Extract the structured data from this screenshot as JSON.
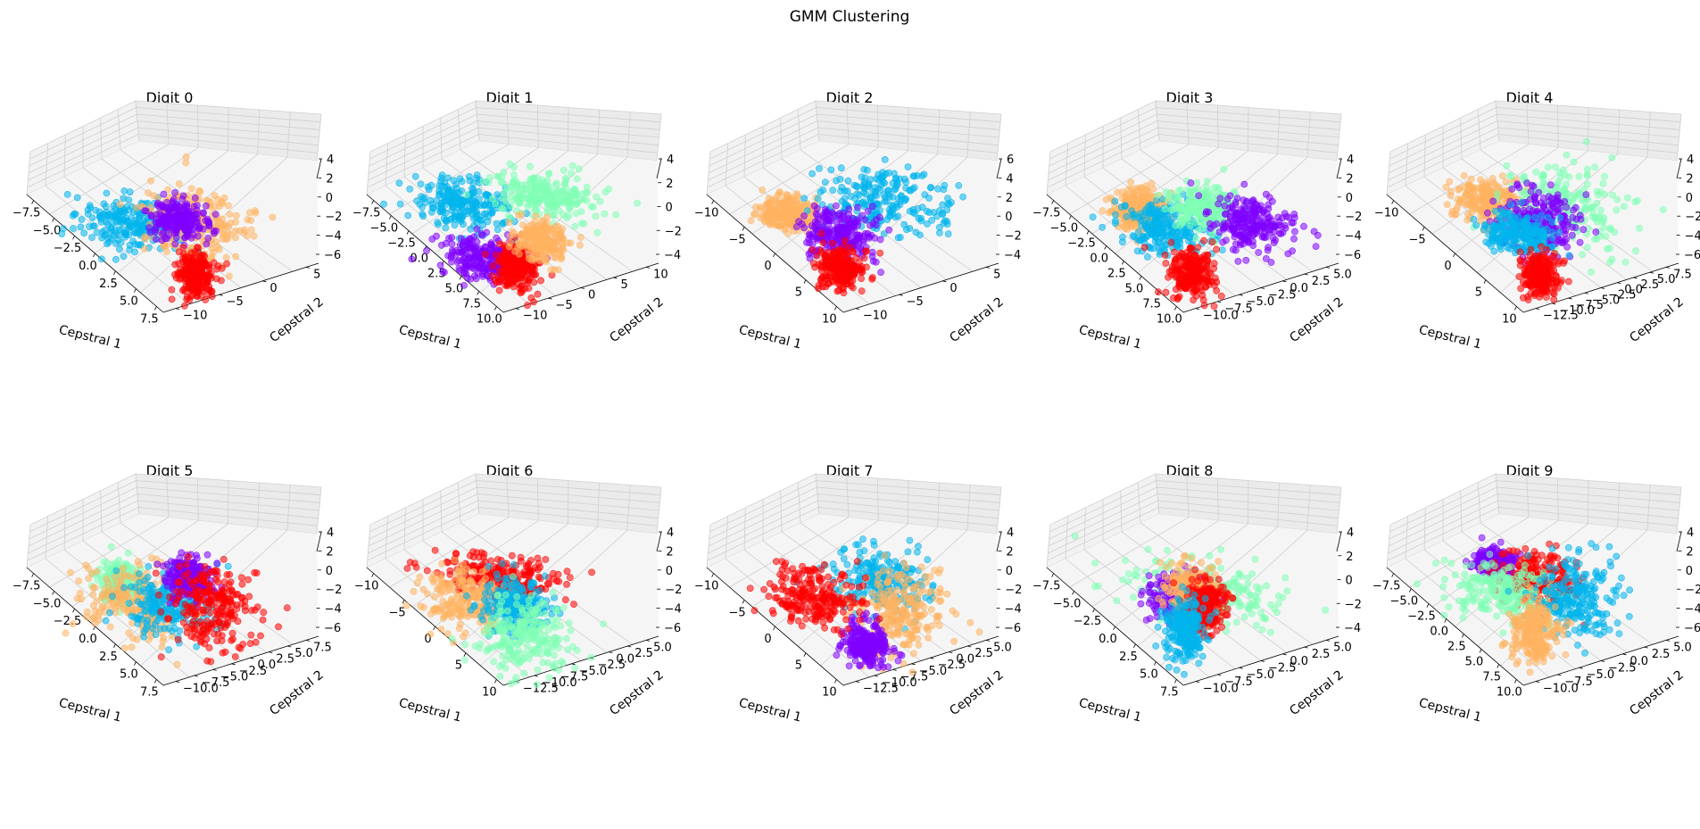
{
  "figure": {
    "title": "GMM Clustering"
  },
  "colors": {
    "purple": "#8000ff",
    "blue": "#00b4ec",
    "green": "#80ffb4",
    "orange": "#ffb360",
    "red": "#ff0000"
  },
  "chart_data": [
    {
      "type": "scatter",
      "title": "Digit 0",
      "xlabel": "Cepstral 1",
      "ylabel": "Cepstral 2",
      "xticks": [
        "−7.5",
        "−5.0",
        "−2.5",
        "0.0",
        "2.5",
        "5.0",
        "7.5"
      ],
      "yticks": [
        "−10",
        "−5",
        "0",
        "5"
      ],
      "zticks": [
        "−6",
        "−4",
        "−2",
        "0",
        "2",
        "4"
      ],
      "clusters": [
        {
          "color": "blue",
          "center": [
            -3,
            -2,
            -0.5
          ],
          "spread": [
            2.2,
            2,
            1.2
          ]
        },
        {
          "color": "orange",
          "center": [
            3,
            -1,
            0.5
          ],
          "spread": [
            2.2,
            1.8,
            1.8
          ]
        },
        {
          "color": "purple",
          "center": [
            1,
            0,
            0
          ],
          "spread": [
            1.2,
            1,
            1
          ]
        },
        {
          "color": "red",
          "center": [
            4,
            -3,
            -4
          ],
          "spread": [
            0.8,
            1,
            1.2
          ]
        }
      ]
    },
    {
      "type": "scatter",
      "title": "Digit 1",
      "xlabel": "Cepstral 1",
      "ylabel": "Cepstral 2",
      "xticks": [
        "−7.5",
        "−5.0",
        "−2.5",
        "0.0",
        "2.5",
        "5.0",
        "7.5",
        "10.0"
      ],
      "yticks": [
        "−10",
        "−5",
        "0",
        "5",
        "10"
      ],
      "zticks": [
        "−4",
        "−2",
        "0",
        "2",
        "4"
      ],
      "clusters": [
        {
          "color": "blue",
          "center": [
            -4,
            -1,
            1
          ],
          "spread": [
            2.2,
            2,
            1
          ]
        },
        {
          "color": "green",
          "center": [
            2,
            3,
            2
          ],
          "spread": [
            2.5,
            2,
            1.2
          ]
        },
        {
          "color": "purple",
          "center": [
            -1,
            -4,
            -3
          ],
          "spread": [
            1.8,
            1.5,
            1
          ]
        },
        {
          "color": "red",
          "center": [
            3,
            -5,
            -3
          ],
          "spread": [
            1,
            1,
            1.2
          ]
        },
        {
          "color": "orange",
          "center": [
            4,
            -2,
            -1
          ],
          "spread": [
            1.2,
            1,
            1
          ]
        }
      ]
    },
    {
      "type": "scatter",
      "title": "Digit 2",
      "xlabel": "Cepstral 1",
      "ylabel": "Cepstral 2",
      "xticks": [
        "−10",
        "−5",
        "0",
        "5",
        "10"
      ],
      "yticks": [
        "−10",
        "−5",
        "0",
        "5"
      ],
      "zticks": [
        "−4",
        "−2",
        "0",
        "2",
        "4",
        "6"
      ],
      "clusters": [
        {
          "color": "orange",
          "center": [
            -5,
            -2,
            0
          ],
          "spread": [
            1.5,
            1,
            0.8
          ]
        },
        {
          "color": "blue",
          "center": [
            3,
            1,
            2
          ],
          "spread": [
            3,
            2.5,
            1.5
          ]
        },
        {
          "color": "purple",
          "center": [
            0,
            -2,
            -1
          ],
          "spread": [
            1.8,
            1.5,
            1.2
          ]
        },
        {
          "color": "red",
          "center": [
            2,
            -6,
            -3
          ],
          "spread": [
            1,
            1,
            1
          ]
        }
      ]
    },
    {
      "type": "scatter",
      "title": "Digit 3",
      "xlabel": "Cepstral 1",
      "ylabel": "Cepstral 2",
      "xticks": [
        "−7.5",
        "−5.0",
        "−2.5",
        "0.0",
        "2.5",
        "5.0",
        "7.5",
        "10.0"
      ],
      "yticks": [
        "−10.0",
        "−7.5",
        "−5.0",
        "−2.5",
        "0.0",
        "2.5",
        "5.0"
      ],
      "zticks": [
        "−6",
        "−4",
        "−2",
        "0",
        "2",
        "4"
      ],
      "clusters": [
        {
          "color": "orange",
          "center": [
            -5,
            0,
            0
          ],
          "spread": [
            1,
            1,
            1
          ]
        },
        {
          "color": "blue",
          "center": [
            -2,
            -1,
            -1
          ],
          "spread": [
            2,
            1.5,
            1.2
          ]
        },
        {
          "color": "green",
          "center": [
            1,
            1,
            1
          ],
          "spread": [
            1.5,
            1.2,
            1
          ]
        },
        {
          "color": "purple",
          "center": [
            5,
            2,
            0
          ],
          "spread": [
            1.8,
            1.5,
            1.2
          ]
        },
        {
          "color": "red",
          "center": [
            2,
            -4,
            -4
          ],
          "spread": [
            1,
            1,
            1.2
          ]
        }
      ]
    },
    {
      "type": "scatter",
      "title": "Digit 4",
      "xlabel": "Cepstral 1",
      "ylabel": "Cepstral 2",
      "xticks": [
        "−10",
        "−5",
        "0",
        "5",
        "10"
      ],
      "yticks": [
        "−12.5",
        "−10.0",
        "−7.5",
        "−5.0",
        "−2.5",
        "0.0",
        "2.5",
        "5.0",
        "7.5"
      ],
      "zticks": [
        "−6",
        "−4",
        "−2",
        "0",
        "2",
        "4"
      ],
      "clusters": [
        {
          "color": "orange",
          "center": [
            -4,
            0,
            1
          ],
          "spread": [
            1.5,
            1.2,
            1
          ]
        },
        {
          "color": "green",
          "center": [
            2,
            2,
            1
          ],
          "spread": [
            3,
            2.5,
            2
          ]
        },
        {
          "color": "purple",
          "center": [
            1,
            0,
            0
          ],
          "spread": [
            1.8,
            1.5,
            1.5
          ]
        },
        {
          "color": "blue",
          "center": [
            0,
            -2,
            -1
          ],
          "spread": [
            1.5,
            1.2,
            1
          ]
        },
        {
          "color": "red",
          "center": [
            3,
            -4,
            -4
          ],
          "spread": [
            0.8,
            0.8,
            1
          ]
        }
      ]
    },
    {
      "type": "scatter",
      "title": "Digit 5",
      "xlabel": "Cepstral 1",
      "ylabel": "Cepstral 2",
      "xticks": [
        "−7.5",
        "−5.0",
        "−2.5",
        "0.0",
        "2.5",
        "5.0",
        "7.5"
      ],
      "yticks": [
        "−10.0",
        "−7.5",
        "−5.0",
        "−2.5",
        "0.0",
        "2.5",
        "5.0",
        "7.5"
      ],
      "zticks": [
        "−6",
        "−4",
        "−2",
        "0",
        "2",
        "4"
      ],
      "clusters": [
        {
          "color": "green",
          "center": [
            -5,
            0,
            0
          ],
          "spread": [
            1,
            1,
            1
          ]
        },
        {
          "color": "orange",
          "center": [
            -2,
            -2,
            -1
          ],
          "spread": [
            2.5,
            2,
            1.8
          ]
        },
        {
          "color": "blue",
          "center": [
            0,
            0,
            -1
          ],
          "spread": [
            2,
            1.8,
            1.5
          ]
        },
        {
          "color": "purple",
          "center": [
            1,
            2,
            1
          ],
          "spread": [
            1,
            1,
            1
          ]
        },
        {
          "color": "red",
          "center": [
            4,
            1,
            -1
          ],
          "spread": [
            2,
            2,
            2
          ]
        }
      ]
    },
    {
      "type": "scatter",
      "title": "Digit 6",
      "xlabel": "Cepstral 1",
      "ylabel": "Cepstral 2",
      "xticks": [
        "−10",
        "−5",
        "0",
        "5",
        "10"
      ],
      "yticks": [
        "−12.5",
        "−10.0",
        "−7.5",
        "−5.0",
        "−2.5",
        "0.0",
        "2.5",
        "5.0"
      ],
      "zticks": [
        "−6",
        "−4",
        "−2",
        "0",
        "2",
        "4"
      ],
      "clusters": [
        {
          "color": "red",
          "center": [
            -1,
            1,
            1
          ],
          "spread": [
            3,
            1.5,
            1
          ]
        },
        {
          "color": "orange",
          "center": [
            -3,
            -2,
            -1
          ],
          "spread": [
            2,
            1.5,
            1.5
          ]
        },
        {
          "color": "blue",
          "center": [
            1,
            -1,
            -1
          ],
          "spread": [
            1.5,
            1.5,
            1.5
          ]
        },
        {
          "color": "green",
          "center": [
            3,
            -3,
            -3
          ],
          "spread": [
            2,
            2,
            2
          ]
        }
      ]
    },
    {
      "type": "scatter",
      "title": "Digit 7",
      "xlabel": "Cepstral 1",
      "ylabel": "Cepstral 2",
      "xticks": [
        "−10",
        "−5",
        "0",
        "5",
        "10"
      ],
      "yticks": [
        "−12.5",
        "−10.0",
        "−7.5",
        "−5.0",
        "−2.5",
        "0.0",
        "2.5",
        "5.0"
      ],
      "zticks": [
        "−6",
        "−4",
        "−2",
        "0",
        "2",
        "4"
      ],
      "clusters": [
        {
          "color": "blue",
          "center": [
            2,
            2,
            1
          ],
          "spread": [
            2,
            1.5,
            1.5
          ]
        },
        {
          "color": "orange",
          "center": [
            5,
            0,
            -1
          ],
          "spread": [
            2,
            1.5,
            2
          ]
        },
        {
          "color": "purple",
          "center": [
            3,
            -3,
            -4
          ],
          "spread": [
            1,
            1,
            1.2
          ]
        },
        {
          "color": "red",
          "center": [
            -3,
            -1,
            -1
          ],
          "spread": [
            2.2,
            1.5,
            1.5
          ]
        }
      ]
    },
    {
      "type": "scatter",
      "title": "Digit 8",
      "xlabel": "Cepstral 1",
      "ylabel": "Cepstral 2",
      "xticks": [
        "−7.5",
        "−5.0",
        "−2.5",
        "0.0",
        "2.5",
        "5.0",
        "7.5"
      ],
      "yticks": [
        "−10.0",
        "−7.5",
        "−5.0",
        "−2.5",
        "0.0",
        "2.5",
        "5.0"
      ],
      "zticks": [
        "−4",
        "−2",
        "0",
        "2",
        "4"
      ],
      "clusters": [
        {
          "color": "green",
          "center": [
            1,
            1,
            0
          ],
          "spread": [
            3.5,
            2,
            1.5
          ]
        },
        {
          "color": "purple",
          "center": [
            -1,
            0,
            -1
          ],
          "spread": [
            1.5,
            1,
            1.2
          ]
        },
        {
          "color": "orange",
          "center": [
            0,
            0,
            0
          ],
          "spread": [
            1.2,
            1.2,
            1.5
          ]
        },
        {
          "color": "red",
          "center": [
            2,
            -1,
            -1
          ],
          "spread": [
            0.8,
            1,
            1.5
          ]
        },
        {
          "color": "blue",
          "center": [
            1,
            -3,
            -3
          ],
          "spread": [
            1,
            1,
            1.5
          ]
        }
      ]
    },
    {
      "type": "scatter",
      "title": "Digit 9",
      "xlabel": "Cepstral 1",
      "ylabel": "Cepstral 2",
      "xticks": [
        "−7.5",
        "−5.0",
        "−2.5",
        "0.0",
        "2.5",
        "5.0",
        "7.5",
        "10.0"
      ],
      "yticks": [
        "−10.0",
        "−7.5",
        "−5.0",
        "−2.5",
        "0.0",
        "2.5",
        "5.0"
      ],
      "zticks": [
        "−6",
        "−4",
        "−2",
        "0",
        "2",
        "4"
      ],
      "clusters": [
        {
          "color": "purple",
          "center": [
            -4,
            1,
            2
          ],
          "spread": [
            1,
            0.8,
            0.6
          ]
        },
        {
          "color": "red",
          "center": [
            0,
            1,
            1
          ],
          "spread": [
            2,
            1.5,
            1.2
          ]
        },
        {
          "color": "green",
          "center": [
            -2,
            -1,
            0
          ],
          "spread": [
            2.5,
            2,
            1.2
          ]
        },
        {
          "color": "blue",
          "center": [
            4,
            1,
            0
          ],
          "spread": [
            2,
            1.8,
            2
          ]
        },
        {
          "color": "orange",
          "center": [
            2,
            -3,
            -3
          ],
          "spread": [
            1,
            1,
            1.5
          ]
        }
      ]
    }
  ]
}
